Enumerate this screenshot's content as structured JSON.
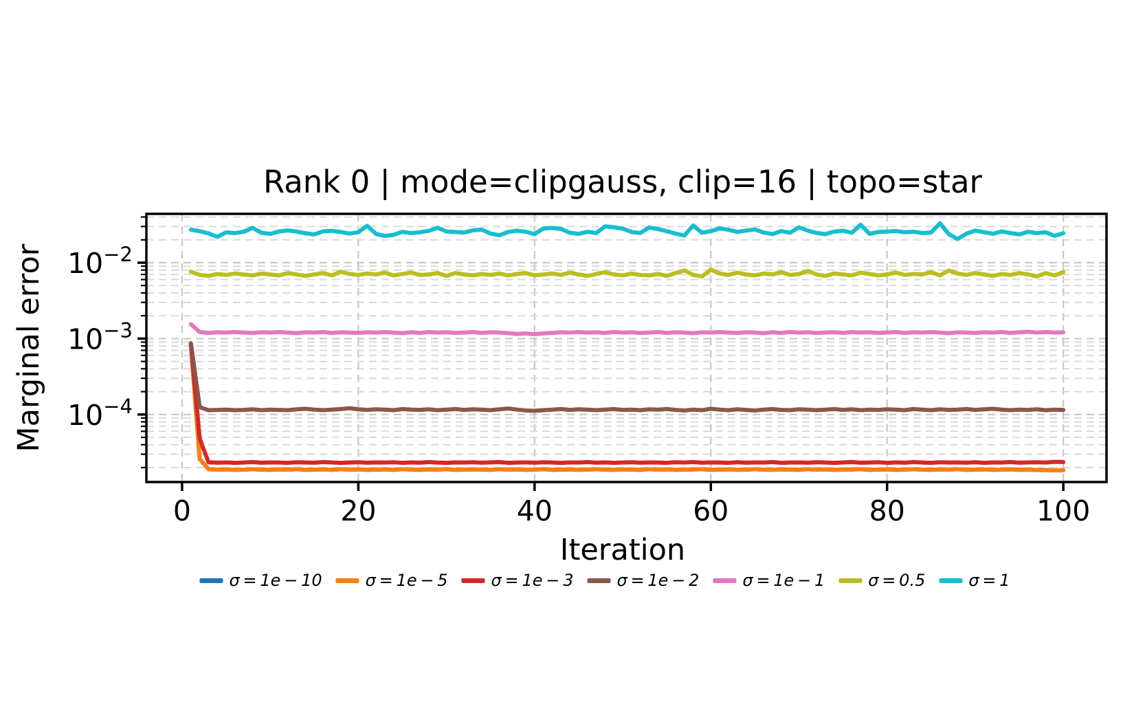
{
  "chart_data": {
    "type": "line",
    "title": "Rank 0 | mode=clipgauss, clip=16 | topo=star",
    "xlabel": "Iteration",
    "ylabel": "Marginal error",
    "yscale": "log",
    "grid": true,
    "legend_position": "below",
    "xlim": [
      -4.05,
      104.9
    ],
    "ylim": [
      1.29e-05,
      0.044
    ],
    "x_start": 1,
    "x_step": 1,
    "xticks": [
      0,
      20,
      40,
      60,
      80,
      100
    ],
    "xtick_labels": [
      "0",
      "20",
      "40",
      "60",
      "80",
      "100"
    ],
    "yticks": [
      {
        "v": 0.01,
        "base": "10",
        "exp": "−2"
      },
      {
        "v": 0.001,
        "base": "10",
        "exp": "−3"
      },
      {
        "v": 0.0001,
        "base": "10",
        "exp": "−4"
      }
    ],
    "series": [
      {
        "name": "σ = 1e − 10",
        "slug": "sigma-1e-10",
        "color": "#1f77b4",
        "values": [
          0.00084,
          2.6e-05,
          1.9e-05,
          1.88e-05,
          1.89e-05,
          1.87e-05,
          1.88e-05,
          1.9e-05,
          1.88e-05,
          1.87e-05,
          1.89e-05,
          1.88e-05,
          1.9e-05,
          1.87e-05,
          1.88e-05,
          1.89e-05,
          1.87e-05,
          1.9e-05,
          1.88e-05,
          1.89e-05,
          1.87e-05,
          1.88e-05,
          1.89e-05,
          1.87e-05,
          1.9e-05,
          1.88e-05,
          1.87e-05,
          1.89e-05,
          1.88e-05,
          1.9e-05,
          1.87e-05,
          1.88e-05,
          1.89e-05,
          1.88e-05,
          1.87e-05,
          1.9e-05,
          1.88e-05,
          1.89e-05,
          1.87e-05,
          1.88e-05,
          1.9e-05,
          1.87e-05,
          1.88e-05,
          1.89e-05,
          1.87e-05,
          1.88e-05,
          1.9e-05,
          1.88e-05,
          1.87e-05,
          1.89e-05,
          1.88e-05,
          1.87e-05,
          1.9e-05,
          1.88e-05,
          1.89e-05,
          1.87e-05,
          1.88e-05,
          1.89e-05,
          1.9e-05,
          1.87e-05,
          1.88e-05,
          1.89e-05,
          1.87e-05,
          1.88e-05,
          1.9e-05,
          1.88e-05,
          1.87e-05,
          1.89e-05,
          1.88e-05,
          1.87e-05,
          1.9e-05,
          1.88e-05,
          1.89e-05,
          1.87e-05,
          1.88e-05,
          1.89e-05,
          1.9e-05,
          1.87e-05,
          1.88e-05,
          1.89e-05,
          1.87e-05,
          1.88e-05,
          1.9e-05,
          1.88e-05,
          1.87e-05,
          1.89e-05,
          1.88e-05,
          1.9e-05,
          1.87e-05,
          1.88e-05,
          1.89e-05,
          1.87e-05,
          1.88e-05,
          1.89e-05,
          1.87e-05,
          1.88e-05,
          1.86e-05,
          1.85e-05,
          1.84e-05,
          1.85e-05
        ]
      },
      {
        "name": "σ = 1e − 5",
        "slug": "sigma-1e-5",
        "color": "#ff7f0e",
        "values": [
          0.00084,
          2.6e-05,
          1.9e-05,
          1.88e-05,
          1.89e-05,
          1.87e-05,
          1.88e-05,
          1.9e-05,
          1.88e-05,
          1.87e-05,
          1.89e-05,
          1.88e-05,
          1.9e-05,
          1.87e-05,
          1.88e-05,
          1.89e-05,
          1.87e-05,
          1.9e-05,
          1.88e-05,
          1.89e-05,
          1.87e-05,
          1.88e-05,
          1.89e-05,
          1.87e-05,
          1.9e-05,
          1.88e-05,
          1.87e-05,
          1.89e-05,
          1.88e-05,
          1.9e-05,
          1.87e-05,
          1.88e-05,
          1.89e-05,
          1.88e-05,
          1.87e-05,
          1.9e-05,
          1.88e-05,
          1.89e-05,
          1.87e-05,
          1.88e-05,
          1.9e-05,
          1.87e-05,
          1.88e-05,
          1.89e-05,
          1.87e-05,
          1.88e-05,
          1.9e-05,
          1.88e-05,
          1.87e-05,
          1.89e-05,
          1.88e-05,
          1.87e-05,
          1.9e-05,
          1.88e-05,
          1.89e-05,
          1.87e-05,
          1.88e-05,
          1.89e-05,
          1.9e-05,
          1.87e-05,
          1.88e-05,
          1.89e-05,
          1.87e-05,
          1.88e-05,
          1.9e-05,
          1.88e-05,
          1.87e-05,
          1.89e-05,
          1.88e-05,
          1.87e-05,
          1.9e-05,
          1.88e-05,
          1.89e-05,
          1.87e-05,
          1.88e-05,
          1.89e-05,
          1.9e-05,
          1.87e-05,
          1.88e-05,
          1.89e-05,
          1.87e-05,
          1.88e-05,
          1.9e-05,
          1.88e-05,
          1.87e-05,
          1.89e-05,
          1.88e-05,
          1.9e-05,
          1.87e-05,
          1.88e-05,
          1.89e-05,
          1.87e-05,
          1.88e-05,
          1.89e-05,
          1.87e-05,
          1.88e-05,
          1.86e-05,
          1.85e-05,
          1.84e-05,
          1.85e-05
        ]
      },
      {
        "name": "σ = 1e − 3",
        "slug": "sigma-1e-3",
        "color": "#d62728",
        "values": [
          0.00086,
          4.8e-05,
          2.35e-05,
          2.32e-05,
          2.34e-05,
          2.31e-05,
          2.33e-05,
          2.36e-05,
          2.32e-05,
          2.34e-05,
          2.33e-05,
          2.31e-05,
          2.35e-05,
          2.33e-05,
          2.32e-05,
          2.36e-05,
          2.34e-05,
          2.31e-05,
          2.33e-05,
          2.35e-05,
          2.32e-05,
          2.34e-05,
          2.33e-05,
          2.35e-05,
          2.31e-05,
          2.34e-05,
          2.32e-05,
          2.36e-05,
          2.33e-05,
          2.31e-05,
          2.34e-05,
          2.33e-05,
          2.35e-05,
          2.32e-05,
          2.34e-05,
          2.36e-05,
          2.31e-05,
          2.33e-05,
          2.34e-05,
          2.32e-05,
          2.35e-05,
          2.33e-05,
          2.31e-05,
          2.34e-05,
          2.33e-05,
          2.36e-05,
          2.32e-05,
          2.34e-05,
          2.31e-05,
          2.33e-05,
          2.35e-05,
          2.32e-05,
          2.34e-05,
          2.33e-05,
          2.31e-05,
          2.35e-05,
          2.33e-05,
          2.36e-05,
          2.32e-05,
          2.34e-05,
          2.33e-05,
          2.31e-05,
          2.35e-05,
          2.32e-05,
          2.34e-05,
          2.33e-05,
          2.36e-05,
          2.31e-05,
          2.33e-05,
          2.34e-05,
          2.32e-05,
          2.35e-05,
          2.33e-05,
          2.31e-05,
          2.34e-05,
          2.36e-05,
          2.32e-05,
          2.33e-05,
          2.35e-05,
          2.31e-05,
          2.34e-05,
          2.32e-05,
          2.36e-05,
          2.33e-05,
          2.31e-05,
          2.35e-05,
          2.33e-05,
          2.34e-05,
          2.32e-05,
          2.35e-05,
          2.31e-05,
          2.34e-05,
          2.33e-05,
          2.36e-05,
          2.32e-05,
          2.34e-05,
          2.35e-05,
          2.33e-05,
          2.38e-05,
          2.36e-05
        ]
      },
      {
        "name": "σ = 1e − 2",
        "slug": "sigma-1e-2",
        "color": "#8c564b",
        "values": [
          0.00087,
          0.000125,
          0.000114,
          0.000115,
          0.000116,
          0.000114,
          0.000115,
          0.000117,
          0.000114,
          0.000116,
          0.000115,
          0.000114,
          0.000117,
          0.000119,
          0.000116,
          0.000114,
          0.000116,
          0.000118,
          0.000121,
          0.000117,
          0.000115,
          0.000117,
          0.000116,
          0.000114,
          0.000118,
          0.000116,
          0.000115,
          0.000117,
          0.000114,
          0.000116,
          0.000118,
          0.000115,
          0.000117,
          0.000116,
          0.000114,
          0.000117,
          0.00012,
          0.000116,
          0.000113,
          0.000112,
          0.000114,
          0.000116,
          0.000118,
          0.000115,
          0.000117,
          0.000116,
          0.000114,
          0.000116,
          0.000118,
          0.000115,
          0.000116,
          0.000114,
          0.000117,
          0.000116,
          0.000118,
          0.000115,
          0.000113,
          0.000116,
          0.000114,
          0.000119,
          0.000116,
          0.000114,
          0.000117,
          0.000115,
          0.000113,
          0.000116,
          0.000118,
          0.000115,
          0.000114,
          0.000117,
          0.000116,
          0.000114,
          0.000116,
          0.000118,
          0.000115,
          0.000117,
          0.000114,
          0.000116,
          0.000115,
          0.000117,
          0.000116,
          0.000114,
          0.000118,
          0.000116,
          0.000114,
          0.000117,
          0.000115,
          0.000116,
          0.000118,
          0.000115,
          0.000117,
          0.000119,
          0.000116,
          0.000114,
          0.000116,
          0.000115,
          0.000117,
          0.000114,
          0.000116,
          0.000115
        ]
      },
      {
        "name": "σ = 1e − 1",
        "slug": "sigma-1e-1",
        "color": "#e377c2",
        "values": [
          0.00155,
          0.00122,
          0.00119,
          0.00121,
          0.0012,
          0.00122,
          0.0012,
          0.00119,
          0.00121,
          0.0012,
          0.00122,
          0.0012,
          0.00118,
          0.00121,
          0.0012,
          0.00122,
          0.00119,
          0.00121,
          0.0012,
          0.00119,
          0.00121,
          0.0012,
          0.00122,
          0.0012,
          0.00118,
          0.00121,
          0.00119,
          0.00122,
          0.0012,
          0.00121,
          0.00119,
          0.0012,
          0.00122,
          0.00119,
          0.00121,
          0.0012,
          0.00118,
          0.00115,
          0.00117,
          0.00114,
          0.00117,
          0.00119,
          0.00121,
          0.0012,
          0.00122,
          0.0012,
          0.00121,
          0.00119,
          0.00122,
          0.0012,
          0.00121,
          0.00119,
          0.0012,
          0.00122,
          0.00119,
          0.00121,
          0.0012,
          0.00118,
          0.00121,
          0.0012,
          0.00122,
          0.0012,
          0.00119,
          0.00121,
          0.0012,
          0.00118,
          0.00121,
          0.00119,
          0.00122,
          0.0012,
          0.00121,
          0.00119,
          0.0012,
          0.00121,
          0.00119,
          0.00122,
          0.0012,
          0.00121,
          0.00119,
          0.0012,
          0.00122,
          0.00119,
          0.00121,
          0.0012,
          0.00122,
          0.0012,
          0.00118,
          0.00121,
          0.0012,
          0.00119,
          0.00121,
          0.0012,
          0.00122,
          0.00119,
          0.00121,
          0.00123,
          0.0012,
          0.00122,
          0.0012,
          0.00121
        ]
      },
      {
        "name": "σ = 0.5",
        "slug": "sigma-0.5",
        "color": "#bcbd22",
        "values": [
          0.0076,
          0.0069,
          0.0067,
          0.0071,
          0.0069,
          0.0072,
          0.007,
          0.0068,
          0.0072,
          0.007,
          0.0068,
          0.0073,
          0.007,
          0.0067,
          0.007,
          0.0073,
          0.0068,
          0.0076,
          0.0071,
          0.0069,
          0.0072,
          0.007,
          0.0074,
          0.0068,
          0.0071,
          0.0074,
          0.0069,
          0.007,
          0.0073,
          0.0067,
          0.0073,
          0.007,
          0.0068,
          0.0071,
          0.0069,
          0.0072,
          0.0068,
          0.0071,
          0.0073,
          0.0068,
          0.007,
          0.0072,
          0.0069,
          0.0074,
          0.007,
          0.0067,
          0.0071,
          0.0075,
          0.007,
          0.0068,
          0.0072,
          0.0069,
          0.0068,
          0.0071,
          0.0067,
          0.0073,
          0.0079,
          0.0069,
          0.0066,
          0.0081,
          0.0072,
          0.0069,
          0.0074,
          0.007,
          0.0068,
          0.0072,
          0.007,
          0.0075,
          0.0069,
          0.0071,
          0.0078,
          0.007,
          0.0067,
          0.0072,
          0.007,
          0.0068,
          0.0074,
          0.0071,
          0.0068,
          0.007,
          0.0074,
          0.0069,
          0.0071,
          0.007,
          0.0075,
          0.0068,
          0.0079,
          0.0072,
          0.0069,
          0.0073,
          0.007,
          0.0067,
          0.0071,
          0.0069,
          0.0073,
          0.007,
          0.0066,
          0.0073,
          0.0068,
          0.0075
        ]
      },
      {
        "name": "σ = 1",
        "slug": "sigma-1",
        "color": "#17becf",
        "values": [
          0.0272,
          0.026,
          0.0243,
          0.0219,
          0.0251,
          0.0245,
          0.0256,
          0.0288,
          0.0248,
          0.024,
          0.0258,
          0.0266,
          0.0257,
          0.0244,
          0.0236,
          0.0259,
          0.0263,
          0.0254,
          0.0242,
          0.0252,
          0.0306,
          0.024,
          0.0225,
          0.0233,
          0.0255,
          0.0245,
          0.0252,
          0.0263,
          0.0288,
          0.0258,
          0.0254,
          0.025,
          0.0267,
          0.0273,
          0.0242,
          0.023,
          0.0254,
          0.0264,
          0.0256,
          0.0238,
          0.0282,
          0.0287,
          0.0278,
          0.0248,
          0.024,
          0.0255,
          0.0246,
          0.0301,
          0.0293,
          0.0281,
          0.0254,
          0.0246,
          0.0291,
          0.0277,
          0.026,
          0.0242,
          0.0228,
          0.0309,
          0.0248,
          0.026,
          0.0283,
          0.0272,
          0.0254,
          0.0265,
          0.0274,
          0.025,
          0.0238,
          0.0261,
          0.0248,
          0.0293,
          0.0264,
          0.0246,
          0.0238,
          0.0257,
          0.0264,
          0.0248,
          0.0316,
          0.024,
          0.0254,
          0.0257,
          0.0261,
          0.0252,
          0.0256,
          0.0246,
          0.025,
          0.0331,
          0.0238,
          0.0205,
          0.0241,
          0.0265,
          0.0252,
          0.024,
          0.0258,
          0.0246,
          0.0236,
          0.0255,
          0.0245,
          0.0252,
          0.0226,
          0.0245
        ]
      }
    ],
    "styling": {
      "grid_color_major": "#c7c7c7",
      "grid_color_minor": "#d9d9d9",
      "spine_color": "#000000",
      "line_width": 6
    }
  }
}
